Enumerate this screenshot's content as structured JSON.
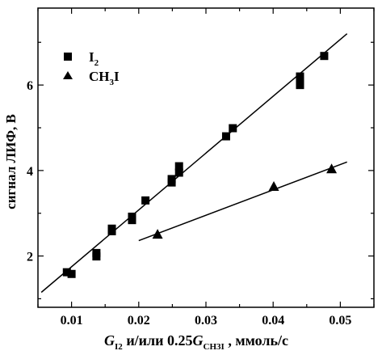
{
  "chart_data": {
    "type": "scatter",
    "xlabel": {
      "G": "G",
      "sub1": "I2",
      "middle": " и/или  0.25",
      "sub2": "CH3I",
      "tail": " , ммоль/с"
    },
    "ylabel": "сигнал ЛИФ, В",
    "xlim": [
      0.005,
      0.055
    ],
    "ylim": [
      0.8,
      7.8
    ],
    "x_ticks": [
      0.01,
      0.02,
      0.03,
      0.04,
      0.05
    ],
    "x_tick_labels": [
      "0.01",
      "0.02",
      "0.03",
      "0.04",
      "0.05"
    ],
    "y_ticks": [
      2,
      4,
      6
    ],
    "y_tick_labels": [
      "2",
      "4",
      "6"
    ],
    "legend": {
      "placement": "top-left",
      "entries": [
        {
          "base": "I",
          "sub": "2",
          "post": "",
          "marker": "square"
        },
        {
          "base": "CH",
          "sub": "3",
          "post": "I",
          "marker": "triangle"
        }
      ]
    },
    "series": [
      {
        "id": "I2",
        "marker": "square",
        "points": [
          [
            0.0093,
            1.62
          ],
          [
            0.01,
            1.58
          ],
          [
            0.0137,
            1.99
          ],
          [
            0.0137,
            2.07
          ],
          [
            0.016,
            2.58
          ],
          [
            0.016,
            2.64
          ],
          [
            0.019,
            2.84
          ],
          [
            0.019,
            2.92
          ],
          [
            0.021,
            3.3
          ],
          [
            0.0249,
            3.72
          ],
          [
            0.0249,
            3.8
          ],
          [
            0.026,
            3.95
          ],
          [
            0.026,
            4.1
          ],
          [
            0.033,
            4.8
          ],
          [
            0.034,
            4.99
          ],
          [
            0.044,
            6.0
          ],
          [
            0.044,
            6.1
          ],
          [
            0.044,
            6.2
          ],
          [
            0.0476,
            6.68
          ]
        ],
        "fit": [
          [
            0.0055,
            1.15
          ],
          [
            0.051,
            7.2
          ]
        ]
      },
      {
        "id": "CH3I",
        "marker": "triangle",
        "points": [
          [
            0.0228,
            2.5
          ],
          [
            0.0401,
            3.62
          ],
          [
            0.0487,
            4.03
          ]
        ],
        "fit": [
          [
            0.02,
            2.36
          ],
          [
            0.051,
            4.2
          ]
        ]
      }
    ],
    "grid": false
  }
}
